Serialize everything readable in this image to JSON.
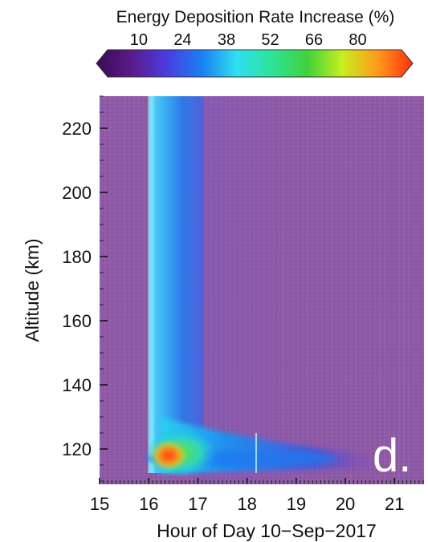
{
  "chart_data": {
    "type": "heatmap",
    "colorbar": {
      "title": "Energy Deposition Rate Increase (%)",
      "ticks": [
        10,
        24,
        38,
        52,
        66,
        80
      ],
      "range": [
        0,
        94
      ],
      "colors": [
        "#3a0a55",
        "#5a1a8a",
        "#4a3ce0",
        "#1b7ff2",
        "#2ee0f0",
        "#2ee39a",
        "#3fd23a",
        "#c8ee20",
        "#ff9a1a",
        "#ff3010"
      ]
    },
    "xlabel": "Hour of Day 10−Sep−2017",
    "ylabel": "Altitude (km)",
    "x_ticks": [
      "15",
      "16",
      "17",
      "18",
      "19",
      "20",
      "21"
    ],
    "y_ticks": [
      "120",
      "140",
      "160",
      "180",
      "200",
      "220"
    ],
    "xlim": [
      15,
      21.6
    ],
    "ylim": [
      109,
      230
    ],
    "background_color": "#8e5aa6",
    "flare_onset_hour": 16.0,
    "features": [
      {
        "x": 16.3,
        "y": 115,
        "value": 85
      },
      {
        "x": 16.5,
        "y": 116,
        "value": 55
      },
      {
        "x": 17.0,
        "y": 115,
        "value": 30
      },
      {
        "x": 16.45,
        "y": 170,
        "value": 22
      }
    ],
    "panel_label": "d."
  }
}
